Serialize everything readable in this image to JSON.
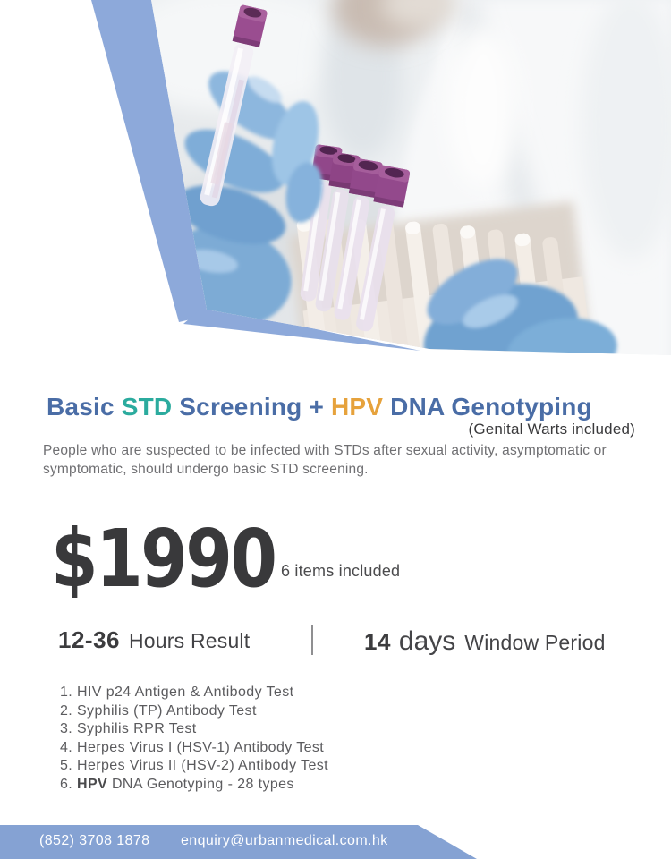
{
  "colors": {
    "title_blue": "#4a6da6",
    "title_teal": "#2bab9e",
    "title_orange": "#e6a23c",
    "accent_stripe": "#8da9da",
    "footer_band": "#85a2d3",
    "price_text": "#39393b"
  },
  "hero": {
    "photo_label": "Gloved hands holding a rack of purple-capped blood test tubes in a lab"
  },
  "title": {
    "segments": [
      {
        "text": "Basic ",
        "color": "title_blue"
      },
      {
        "text": "STD",
        "color": "title_teal"
      },
      {
        "text": " Screening + ",
        "color": "title_blue"
      },
      {
        "text": "HPV",
        "color": "title_orange"
      },
      {
        "text": " DNA Genotyping",
        "color": "title_blue"
      }
    ]
  },
  "subtitle": "(Genital Warts included)",
  "description": "People who are suspected to be infected with STDs after sexual activity, asymptomatic or symptomatic, should undergo basic STD screening.",
  "price": {
    "amount": "$1990",
    "note": "6 items included"
  },
  "stats": {
    "result": {
      "value": "12-36",
      "label": "Hours Result"
    },
    "window": {
      "value": "14",
      "unit": "days",
      "label": "Window Period"
    }
  },
  "tests": {
    "items": [
      {
        "segments": [
          {
            "text": "1. HIV p24 Antigen & Antibody Test"
          }
        ]
      },
      {
        "segments": [
          {
            "text": "2. Syphilis (TP) Antibody Test"
          }
        ]
      },
      {
        "segments": [
          {
            "text": "3. Syphilis RPR Test"
          }
        ]
      },
      {
        "segments": [
          {
            "text": "4. Herpes Virus I (HSV-1) Antibody Test"
          }
        ]
      },
      {
        "segments": [
          {
            "text": "5. Herpes Virus II (HSV-2) Antibody Test"
          }
        ]
      },
      {
        "segments": [
          {
            "text": "6. "
          },
          {
            "text": "HPV",
            "bold": true
          },
          {
            "text": " DNA Genotyping - 28 types"
          }
        ]
      }
    ]
  },
  "footer": {
    "phone": "(852) 3708 1878",
    "email": "enquiry@urbanmedical.com.hk"
  }
}
